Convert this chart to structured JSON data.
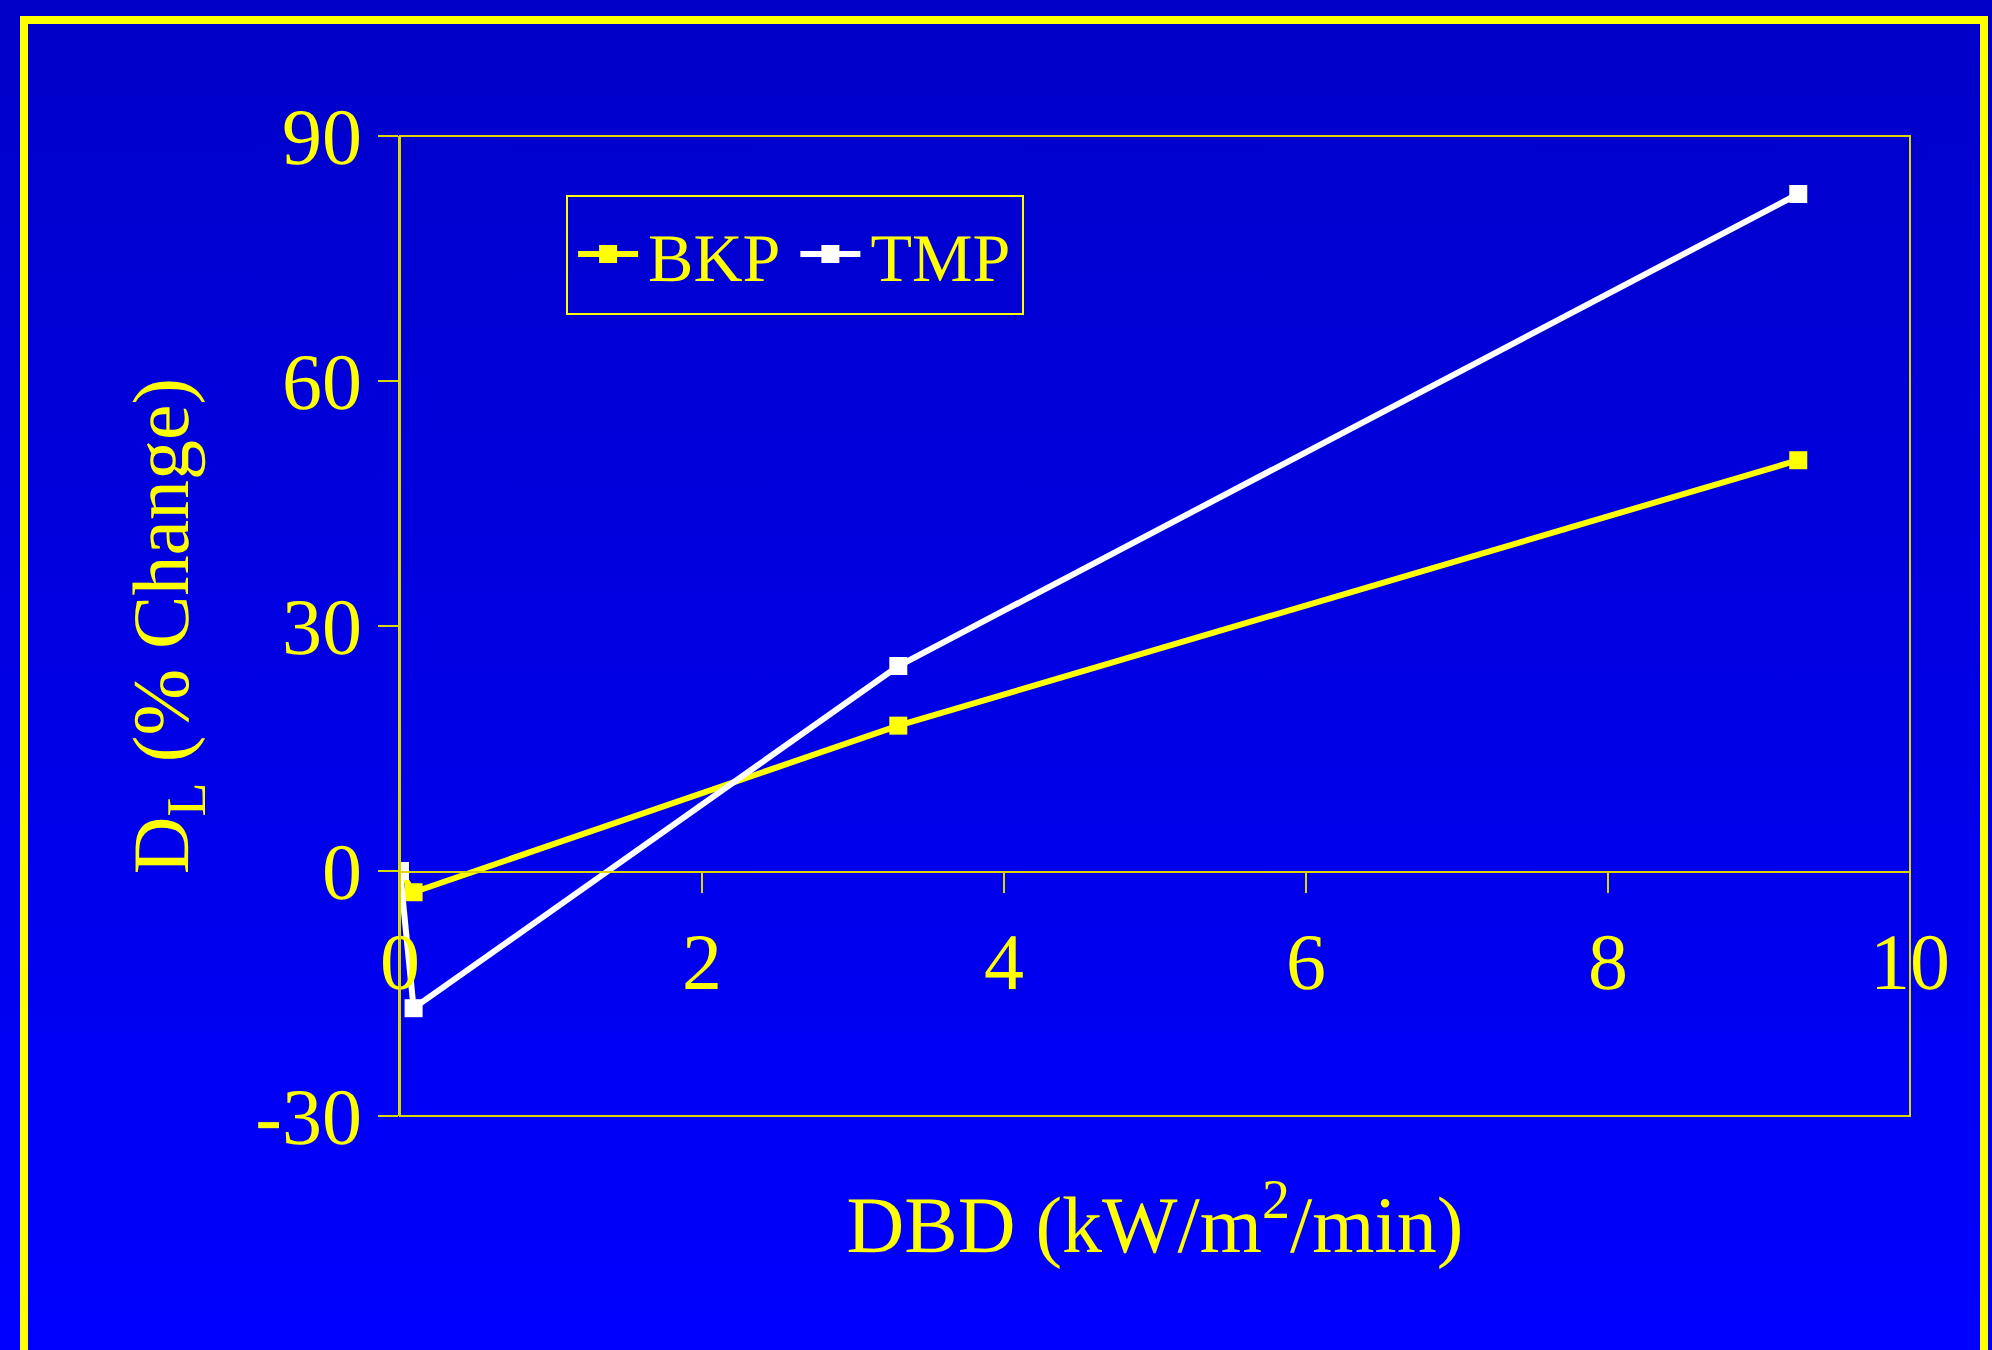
{
  "chart_data": {
    "type": "line",
    "xlabel": "DBD (kW/m$^{2}$/min)",
    "ylabel": "D$_{L}$ (% Change)",
    "series": [
      {
        "name": "BKP",
        "color": "#ffff00",
        "x": [
          0,
          0.09,
          3.3,
          9.26
        ],
        "values": [
          0,
          -2.6,
          17.8,
          50.3
        ]
      },
      {
        "name": "TMP",
        "color": "#ffffff",
        "x": [
          0,
          0.09,
          3.3,
          9.26
        ],
        "values": [
          0,
          -16.8,
          25.1,
          82.9
        ]
      }
    ],
    "xlim": [
      0,
      10
    ],
    "xticks": [
      0,
      2,
      4,
      6,
      8,
      10
    ],
    "ylim": [
      -30,
      90
    ],
    "yticks": [
      -30,
      0,
      30,
      60,
      90
    ],
    "grid": false,
    "legend": "top left",
    "marker": "square",
    "line_style": "solid"
  }
}
